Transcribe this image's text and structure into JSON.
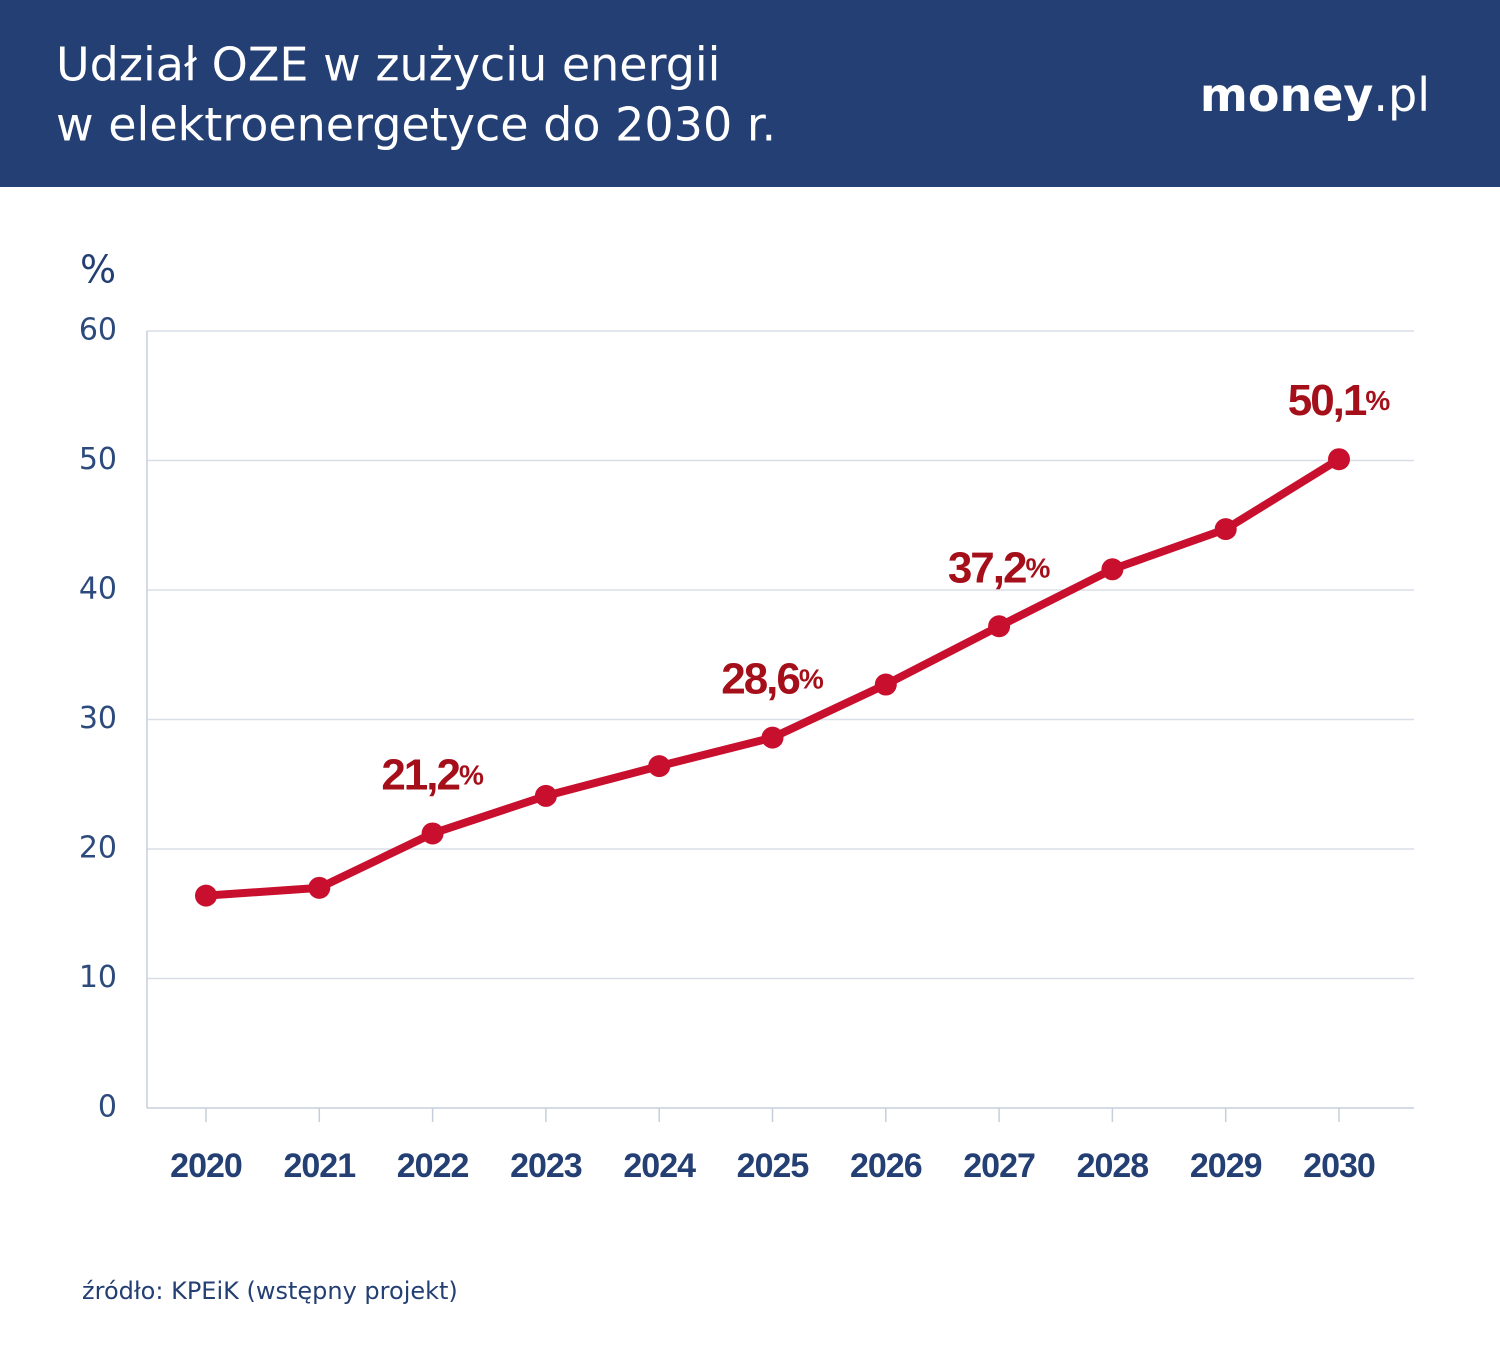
{
  "chart_data": {
    "type": "line",
    "title": [
      "Udział OZE w zużyciu energii",
      "w elektroenergetyce do 2030 r."
    ],
    "logo": "money.pl",
    "y_label": "%",
    "categories": [
      "2020",
      "2021",
      "2022",
      "2023",
      "2024",
      "2025",
      "2026",
      "2027",
      "2028",
      "2029",
      "2030"
    ],
    "series": [
      {
        "color": "#c8102e",
        "values": [
          16.4,
          17.0,
          21.2,
          24.1,
          26.4,
          28.6,
          32.7,
          37.2,
          41.6,
          44.7,
          50.1
        ],
        "value_labels": [
          null,
          null,
          "21,2%",
          null,
          null,
          "28,6%",
          null,
          "37,2%",
          null,
          null,
          "50,1%"
        ]
      }
    ],
    "ylim": [
      0,
      60
    ],
    "yticks": [
      0,
      10,
      20,
      30,
      40,
      50,
      60
    ],
    "grid": true,
    "source": "źródło: KPEiK (wstępny projekt)"
  }
}
